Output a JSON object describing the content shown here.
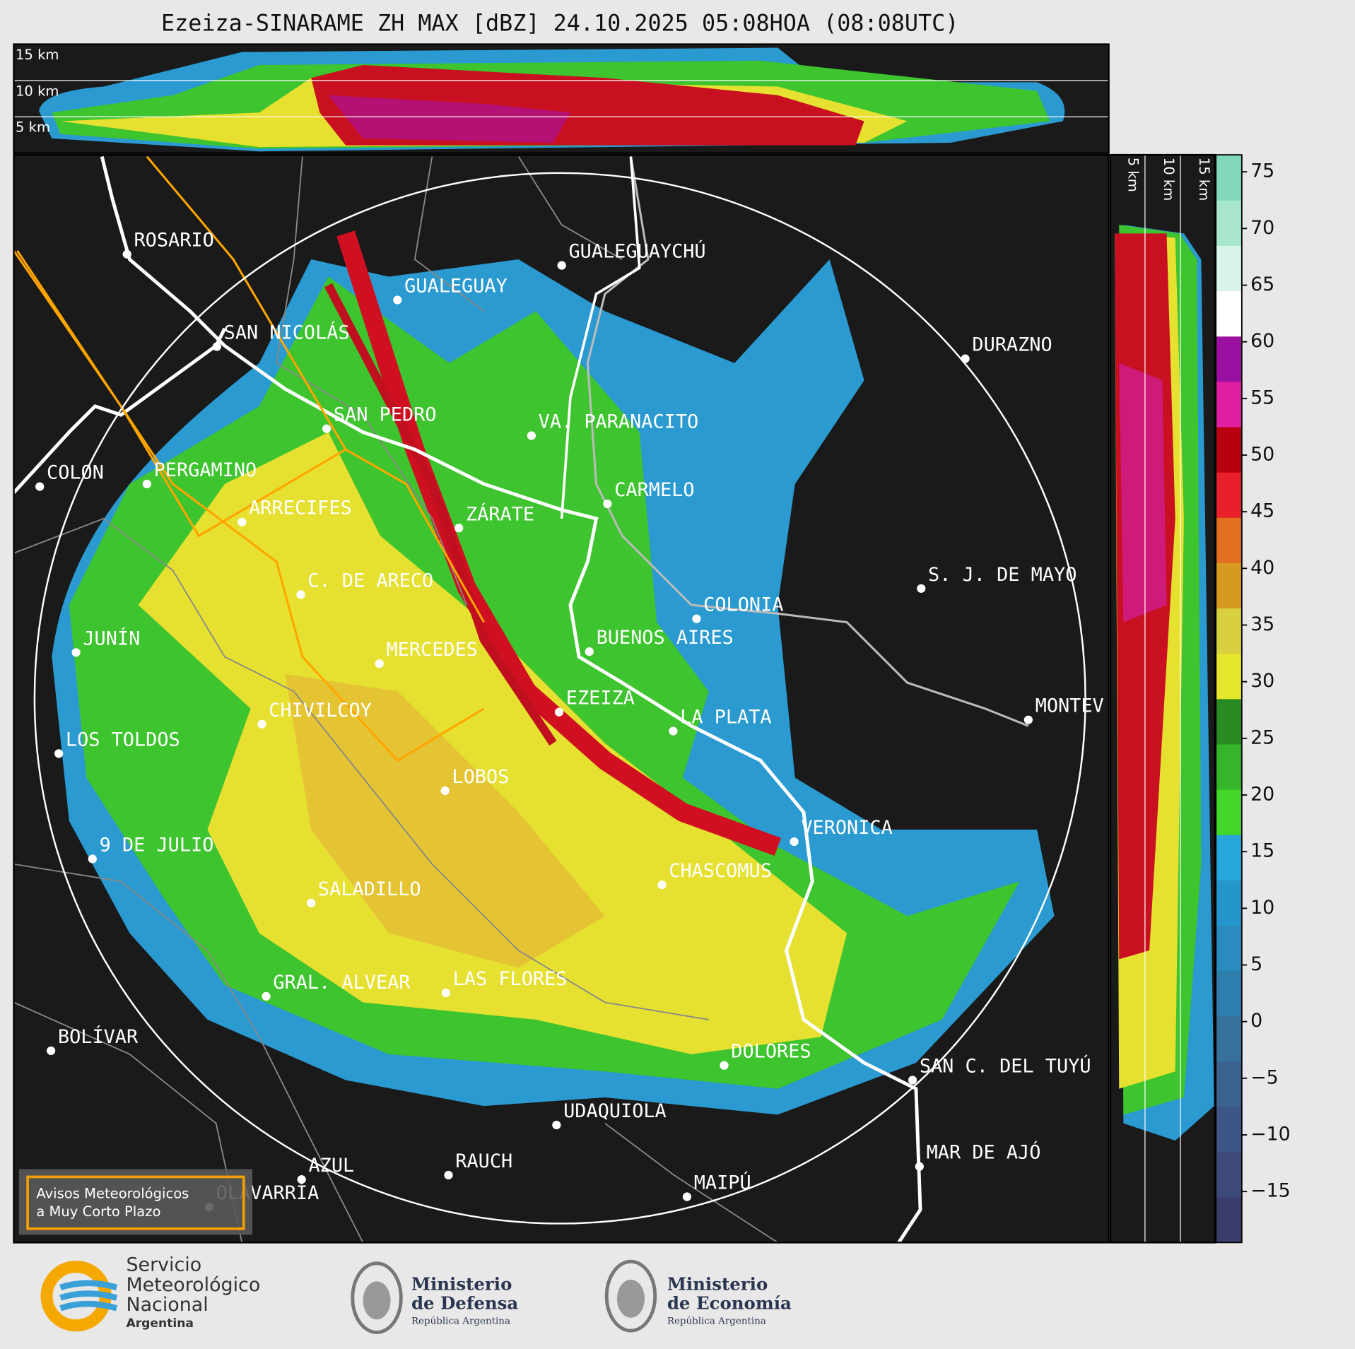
{
  "title": "Ezeiza-SINARAME ZH MAX [dBZ] 24.10.2025 05:08HOA (08:08UTC)",
  "height_labels_top": [
    "15 km",
    "10 km",
    "5 km"
  ],
  "height_labels_side": [
    "5 km",
    "10 km",
    "15 km"
  ],
  "cities": [
    "ROSARIO",
    "GUALEGUAY",
    "GUALEGUAYCHÚ",
    "SAN NICOLÁS",
    "DURAZNO",
    "SAN PEDRO",
    "VA. PARANACITO",
    "COLON",
    "PERGAMINO",
    "CARMELO",
    "ARRECIFES",
    "ZÁRATE",
    "S. J. DE MAYO",
    "C. DE ARECO",
    "COLONIA",
    "JUNÍN",
    "BUENOS AIRES",
    "MERCEDES",
    "MONTEV",
    "EZEIZA",
    "CHIVILCOY",
    "LA PLATA",
    "LOS TOLDOS",
    "LOBOS",
    "VERONICA",
    "9 DE JULIO",
    "CHASCOMUS",
    "SALADILLO",
    "GRAL. ALVEAR",
    "LAS FLORES",
    "BOLÍVAR",
    "DOLORES",
    "SAN C. DEL TUYÚ",
    "UDAQUIOLA",
    "MAR DE AJÓ",
    "AZUL",
    "RAUCH",
    "OLAVARRÍA",
    "MAIPÚ"
  ],
  "colorbar": {
    "lim": [
      -19.5,
      76.5
    ],
    "ticks": [
      {
        "value": -15,
        "label": "−15"
      },
      {
        "value": -10,
        "label": "−10"
      },
      {
        "value": -5,
        "label": "−5"
      },
      0,
      5,
      10,
      15,
      20,
      25,
      30,
      35,
      40,
      45,
      50,
      55,
      60,
      65,
      70,
      75
    ],
    "colors": [
      "#3a3d6b",
      "#3d4a7a",
      "#3e5686",
      "#3c6290",
      "#38709c",
      "#2f7fae",
      "#2a8cbe",
      "#2496cc",
      "#27a7d9",
      "#42d62a",
      "#35b52a",
      "#2a8a22",
      "#e6e62e",
      "#d8d040",
      "#d69a20",
      "#e07020",
      "#e8202a",
      "#b80010",
      "#e020a0",
      "#9a10a0",
      "#ffffff",
      "#d8f4ea",
      "#a8e6cc",
      "#80d8b8"
    ]
  },
  "warning_button": [
    "Avisos Meteorológicos",
    "a Muy Corto Plazo"
  ],
  "footer": {
    "smn": [
      "Servicio",
      "Meteorológico",
      "Nacional",
      "Argentina"
    ],
    "defensa": [
      "Ministerio",
      "de Defensa",
      "República Argentina"
    ],
    "economia": [
      "Ministerio",
      "de Economía",
      "República Argentina"
    ]
  }
}
